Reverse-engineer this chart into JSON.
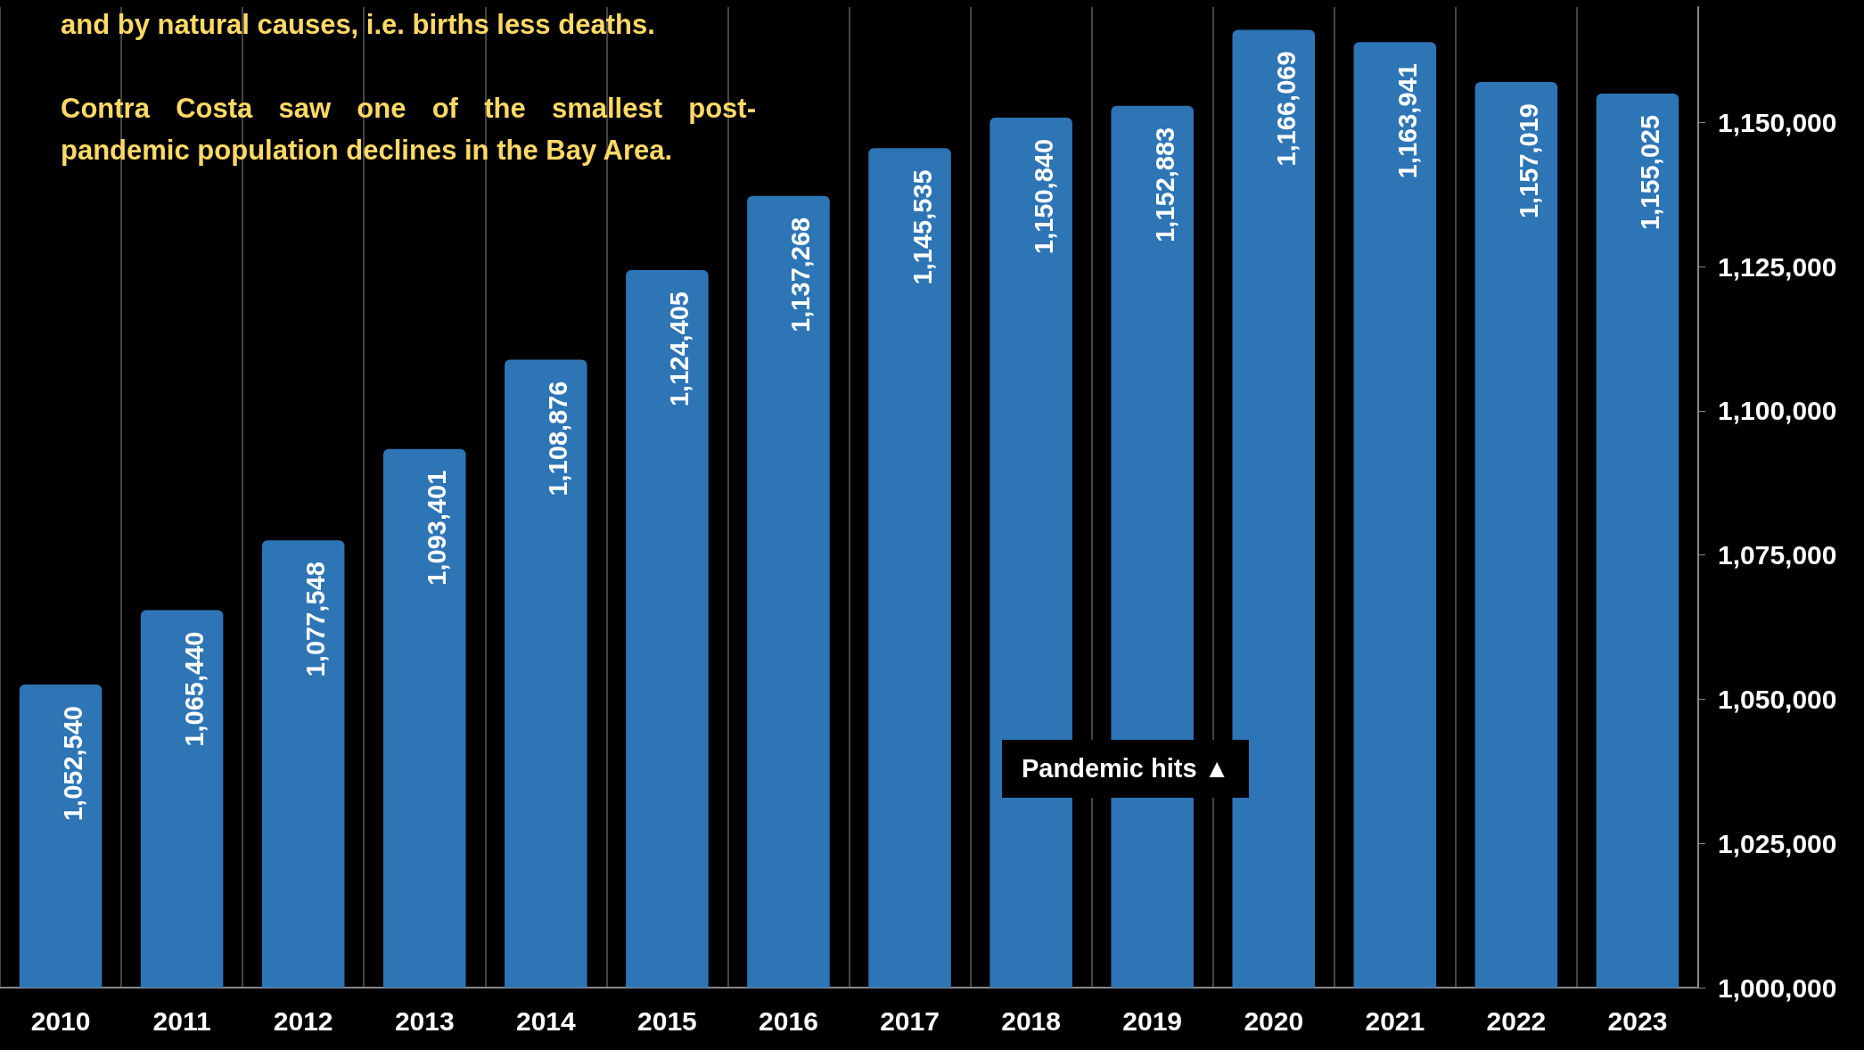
{
  "chart_data": {
    "type": "bar",
    "categories": [
      "2010",
      "2011",
      "2012",
      "2013",
      "2014",
      "2015",
      "2016",
      "2017",
      "2018",
      "2019",
      "2020",
      "2021",
      "2022",
      "2023"
    ],
    "values": [
      1052540,
      1065440,
      1077548,
      1093401,
      1108876,
      1124405,
      1137268,
      1145535,
      1150840,
      1152883,
      1166069,
      1163941,
      1157019,
      1155025
    ],
    "color": "#2e75b6",
    "value_labels": [
      "1,052,540",
      "1,065,440",
      "1,077,548",
      "1,093,401",
      "1,108,876",
      "1,124,405",
      "1,137,268",
      "1,145,535",
      "1,150,840",
      "1,152,883",
      "1,166,069",
      "1,163,941",
      "1,157,019",
      "1,155,025"
    ],
    "ylim": [
      1000000,
      1170000
    ],
    "yticks": [
      {
        "value": 1000000,
        "label": "1,000,000"
      },
      {
        "value": 1025000,
        "label": "1,025,000"
      },
      {
        "value": 1050000,
        "label": "1,050,000"
      },
      {
        "value": 1075000,
        "label": "1,075,000"
      },
      {
        "value": 1100000,
        "label": "1,100,000"
      },
      {
        "value": 1125000,
        "label": "1,125,000"
      },
      {
        "value": 1150000,
        "label": "1,150,000"
      }
    ],
    "grid": "x",
    "annotations": [
      "and by natural causes, i.e. births less deaths.",
      "Contra Costa saw one of the smallest post-pandemic population declines in the Bay Area.",
      "Pandemic hits ▲"
    ]
  }
}
